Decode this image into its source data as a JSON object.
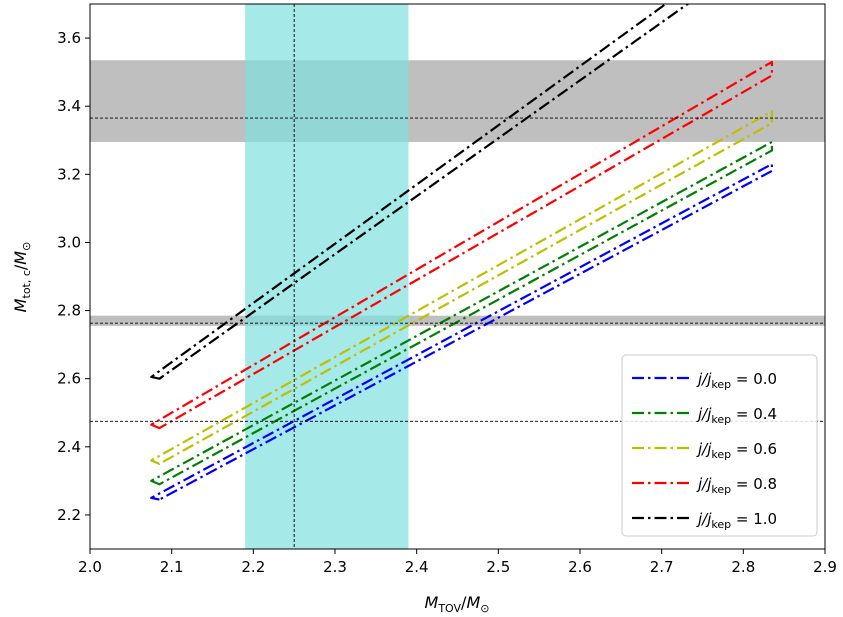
{
  "chart_data": {
    "type": "line",
    "title": "",
    "xlabel": "M_TOV/M_⊙",
    "ylabel": "M_tot,c/M_⊙",
    "xlim": [
      2.0,
      2.9
    ],
    "ylim": [
      2.1,
      3.7
    ],
    "xticks": [
      "2.0",
      "2.1",
      "2.2",
      "2.3",
      "2.4",
      "2.5",
      "2.6",
      "2.7",
      "2.8",
      "2.9"
    ],
    "yticks": [
      "2.2",
      "2.4",
      "2.6",
      "2.8",
      "3.0",
      "3.2",
      "3.4",
      "3.6"
    ],
    "grid": false,
    "legend_position": "lower-right",
    "x_band": {
      "xmin": 2.19,
      "xmax": 2.39,
      "color": "#7fdfdf"
    },
    "y_bands": [
      {
        "ymin": 3.295,
        "ymax": 3.535,
        "color": "#bfbfbf"
      },
      {
        "ymin": 2.755,
        "ymax": 2.785,
        "color": "#bfbfbf"
      }
    ],
    "dashed_lines": {
      "vertical": [
        2.25
      ],
      "horizontal": [
        3.365,
        2.763,
        2.475
      ]
    },
    "series": [
      {
        "name": "j/j_kep = 0.0",
        "label_prefix": "j/j",
        "label_sub": "kep",
        "label_value": " = 0.0",
        "color": "#0000ff",
        "upper": {
          "x": [
            2.075,
            2.835
          ],
          "y": [
            2.25,
            3.23
          ]
        },
        "lower": {
          "x": [
            2.085,
            2.835
          ],
          "y": [
            2.245,
            3.21
          ]
        }
      },
      {
        "name": "j/j_kep = 0.4",
        "label_prefix": "j/j",
        "label_sub": "kep",
        "label_value": " = 0.4",
        "color": "#008000",
        "upper": {
          "x": [
            2.075,
            2.835
          ],
          "y": [
            2.3,
            3.295
          ]
        },
        "lower": {
          "x": [
            2.085,
            2.835
          ],
          "y": [
            2.29,
            3.27
          ]
        }
      },
      {
        "name": "j/j_kep = 0.6",
        "label_prefix": "j/j",
        "label_sub": "kep",
        "label_value": " = 0.6",
        "color": "#bfbf00",
        "upper": {
          "x": [
            2.075,
            2.835
          ],
          "y": [
            2.36,
            3.385
          ]
        },
        "lower": {
          "x": [
            2.085,
            2.835
          ],
          "y": [
            2.35,
            3.35
          ]
        }
      },
      {
        "name": "j/j_kep = 0.8",
        "label_prefix": "j/j",
        "label_sub": "kep",
        "label_value": " = 0.8",
        "color": "#ff0000",
        "upper": {
          "x": [
            2.075,
            2.835
          ],
          "y": [
            2.465,
            3.53
          ]
        },
        "lower": {
          "x": [
            2.085,
            2.835
          ],
          "y": [
            2.455,
            3.49
          ]
        }
      },
      {
        "name": "j/j_kep = 1.0",
        "label_prefix": "j/j",
        "label_sub": "kep",
        "label_value": " = 1.0",
        "color": "#000000",
        "upper": {
          "x": [
            2.075,
            2.82
          ],
          "y": [
            2.605,
            3.9
          ]
        },
        "lower": {
          "x": [
            2.085,
            2.82
          ],
          "y": [
            2.6,
            3.85
          ]
        }
      }
    ]
  }
}
